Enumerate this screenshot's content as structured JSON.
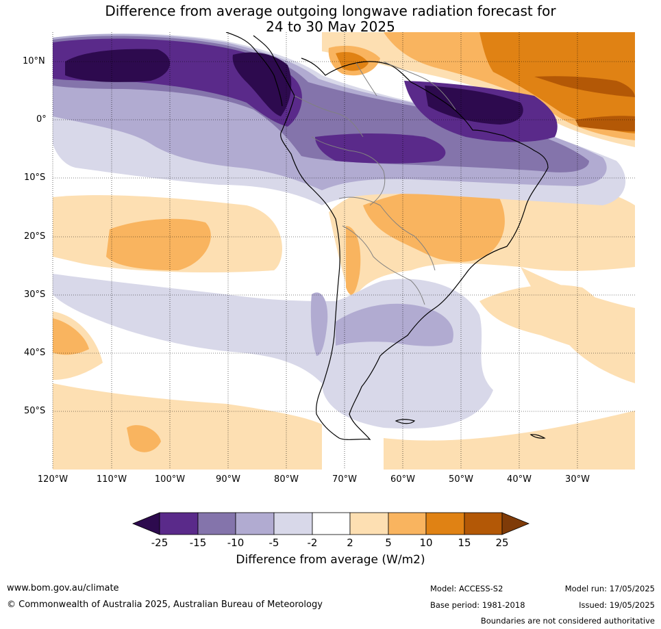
{
  "title": {
    "line1": "Difference from average outgoing longwave radiation forecast for",
    "line2": "24 to 30 May 2025"
  },
  "map": {
    "latitude_labels": [
      "10°N",
      "0°",
      "10°S",
      "20°S",
      "30°S",
      "40°S",
      "50°S"
    ],
    "longitude_labels": [
      "120°W",
      "110°W",
      "100°W",
      "90°W",
      "80°W",
      "70°W",
      "60°W",
      "50°W",
      "40°W",
      "30°W"
    ],
    "colors": {
      "below_-25": "#2d0a4e",
      "-25_-15": "#5a2a8a",
      "-15_-10": "#8474ab",
      "-10_-5": "#b1abd1",
      "-5_-2": "#d8d8e9",
      "-2_2": "#ffffff",
      "2_5": "#fddfb2",
      "5_10": "#f9b45f",
      "10_15": "#e08214",
      "15_25": "#b35806",
      "above_25": "#7f3b08"
    }
  },
  "colorbar": {
    "tick_labels": [
      "-25",
      "-15",
      "-10",
      "-5",
      "-2",
      "2",
      "5",
      "10",
      "15",
      "25"
    ],
    "label": "Difference from average (W/m2)"
  },
  "footer": {
    "website": "www.bom.gov.au/climate",
    "copyright": "© Commonwealth of Australia 2025, Australian Bureau of Meteorology",
    "model": "Model: ACCESS-S2",
    "base_period": "Base period: 1981-2018",
    "model_run": "Model run: 17/05/2025",
    "issued": "Issued: 19/05/2025",
    "disclaimer": "Boundaries are not considered authoritative"
  }
}
